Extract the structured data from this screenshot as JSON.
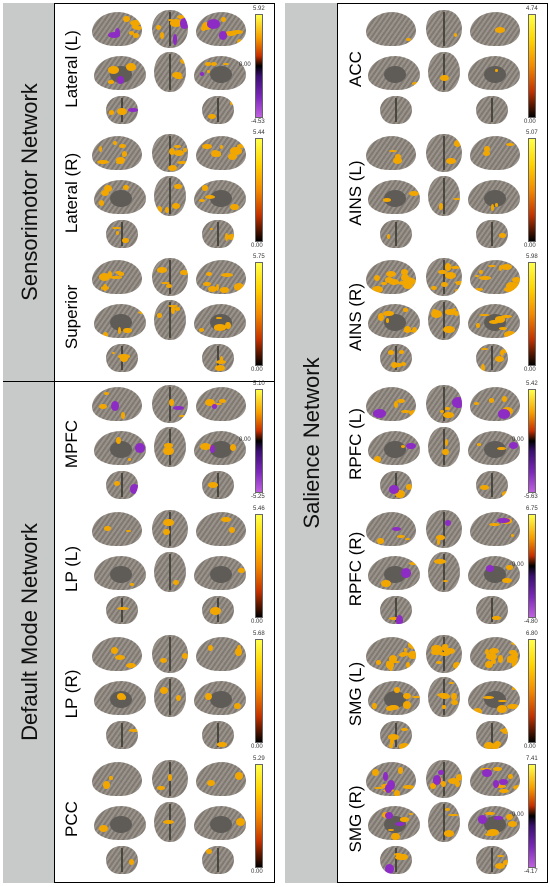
{
  "networks": [
    {
      "id": "sensorimotor",
      "title": "Sensorimotor Network"
    },
    {
      "id": "default_mode",
      "title": "Default Mode Network"
    },
    {
      "id": "salience",
      "title": "Salience Network"
    }
  ],
  "panels": [
    {
      "label": "Lateral (L)",
      "colorbar": {
        "type": "div",
        "max": "5.92",
        "mid": "0.00",
        "min": "-4.53"
      },
      "blobs": "sm_lat_l"
    },
    {
      "label": "Lateral (R)",
      "colorbar": {
        "type": "pos",
        "max": "5.44",
        "min": "0.00"
      }
    },
    {
      "label": "Superior",
      "colorbar": {
        "type": "pos",
        "max": "5.75",
        "min": "0.00"
      }
    },
    {
      "label": "MPFC",
      "colorbar": {
        "type": "div",
        "max": "5.10",
        "mid": "0.00",
        "min": "-5.25"
      }
    },
    {
      "label": "LP (L)",
      "colorbar": {
        "type": "pos",
        "max": "5.46",
        "min": "0.00"
      }
    },
    {
      "label": "LP (R)",
      "colorbar": {
        "type": "pos",
        "max": "5.68",
        "min": "0.00"
      }
    },
    {
      "label": "PCC",
      "colorbar": {
        "type": "pos",
        "max": "5.29",
        "min": "0.00"
      }
    },
    {
      "label": "ACC",
      "colorbar": {
        "type": "pos",
        "max": "4.74",
        "min": "0.00"
      }
    },
    {
      "label": "AINS (L)",
      "colorbar": {
        "type": "pos",
        "max": "5.07",
        "min": "0.00"
      }
    },
    {
      "label": "AINS (R)",
      "colorbar": {
        "type": "pos",
        "max": "5.98",
        "min": "0.00"
      }
    },
    {
      "label": "RPFC (L)",
      "colorbar": {
        "type": "div",
        "max": "5.42",
        "mid": "0.00",
        "min": "-5.63"
      }
    },
    {
      "label": "RPFC (R)",
      "colorbar": {
        "type": "div",
        "max": "6.75",
        "mid": "0.00",
        "min": "-4.80"
      }
    },
    {
      "label": "SMG (L)",
      "colorbar": {
        "type": "pos",
        "max": "6.80",
        "min": "0.00"
      }
    },
    {
      "label": "SMG (R)",
      "colorbar": {
        "type": "div",
        "max": "7.41",
        "mid": "0.00",
        "min": "-4.17"
      }
    }
  ],
  "colors": {
    "brain_surface": "#8e877e",
    "positive_activation": "#f2a600",
    "negative_activation": "#8c2cc4",
    "network_strip": "#c8c9c9"
  }
}
